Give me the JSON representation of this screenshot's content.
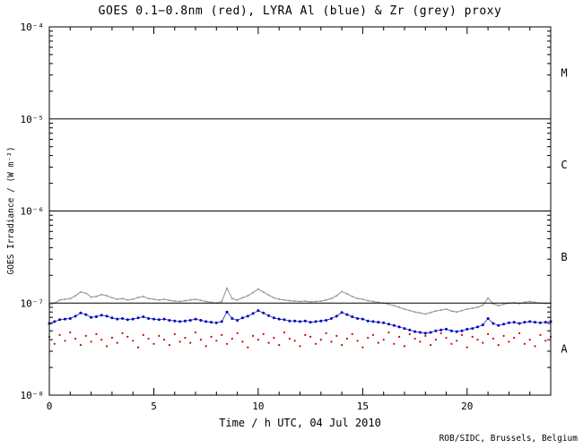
{
  "title": "GOES 0.1−0.8nm (red), LYRA Al (blue) & Zr (grey) proxy",
  "xlabel": "Time / h UTC, 04 Jul 2010",
  "ylabel": "GOES Irradiance / (W m⁻²)",
  "credit": "ROB/SIDC, Brussels, Belgium",
  "colors": {
    "goes_red": "#cc0000",
    "lyra_al_blue": "#0000bb",
    "lyra_zr_grey": "#999999",
    "axis": "#000000",
    "background": "#ffffff"
  },
  "chart_data": {
    "type": "scatter",
    "y_scale": "log",
    "xlim": [
      0,
      24
    ],
    "ylim": [
      1e-08,
      0.0001
    ],
    "grid": false,
    "boundary_lines": [
      1e-05,
      1e-06,
      1e-07
    ],
    "y_ticks": [
      {
        "label": "10⁻⁸",
        "value": 1e-08
      },
      {
        "label": "10⁻⁷",
        "value": 1e-07
      },
      {
        "label": "10⁻⁶",
        "value": 1e-06
      },
      {
        "label": "10⁻⁵",
        "value": 1e-05
      },
      {
        "label": "10⁻⁴",
        "value": 0.0001
      }
    ],
    "x_ticks": {
      "major_values": [
        0,
        5,
        10,
        15,
        20
      ],
      "major_labels": [
        "0",
        "5",
        "10",
        "15",
        "20"
      ],
      "minor_step": 1
    },
    "flare_class_labels": [
      {
        "label": "M",
        "value": 3.16e-05
      },
      {
        "label": "C",
        "value": 3.16e-06
      },
      {
        "label": "B",
        "value": 3.16e-07
      },
      {
        "label": "A",
        "value": 3.16e-08
      }
    ],
    "x": [
      0,
      0.25,
      0.5,
      0.75,
      1,
      1.25,
      1.5,
      1.75,
      2,
      2.25,
      2.5,
      2.75,
      3,
      3.25,
      3.5,
      3.75,
      4,
      4.25,
      4.5,
      4.75,
      5,
      5.25,
      5.5,
      5.75,
      6,
      6.25,
      6.5,
      6.75,
      7,
      7.25,
      7.5,
      7.75,
      8,
      8.25,
      8.5,
      8.75,
      9,
      9.25,
      9.5,
      9.75,
      10,
      10.25,
      10.5,
      10.75,
      11,
      11.25,
      11.5,
      11.75,
      12,
      12.25,
      12.5,
      12.75,
      13,
      13.25,
      13.5,
      13.75,
      14,
      14.25,
      14.5,
      14.75,
      15,
      15.25,
      15.5,
      15.75,
      16,
      16.25,
      16.5,
      16.75,
      17,
      17.25,
      17.5,
      17.75,
      18,
      18.25,
      18.5,
      18.75,
      19,
      19.25,
      19.5,
      19.75,
      20,
      20.25,
      20.5,
      20.75,
      21,
      21.25,
      21.5,
      21.75,
      22,
      22.25,
      22.5,
      22.75,
      23,
      23.25,
      23.5,
      23.75,
      24
    ],
    "series": [
      {
        "key": "goes-red",
        "name": "GOES 0.1−0.8nm (red)",
        "style": "scatter",
        "color_key": "goes_red",
        "values_e9": [
          43,
          36,
          45,
          39,
          48,
          41,
          35,
          44,
          38,
          46,
          40,
          34,
          42,
          37,
          47,
          43,
          39,
          33,
          45,
          41,
          36,
          44,
          40,
          35,
          46,
          38,
          42,
          37,
          48,
          40,
          34,
          43,
          39,
          45,
          36,
          41,
          47,
          38,
          33,
          44,
          40,
          46,
          37,
          42,
          35,
          48,
          41,
          39,
          34,
          45,
          43,
          36,
          40,
          47,
          38,
          44,
          35,
          41,
          46,
          39,
          33,
          42,
          45,
          37,
          40,
          48,
          36,
          43,
          34,
          46,
          41,
          38,
          44,
          35,
          40,
          47,
          42,
          36,
          39,
          45,
          33,
          43,
          40,
          37,
          46,
          41,
          35,
          44,
          38,
          42,
          47,
          36,
          40,
          34,
          45,
          39,
          43
        ]
      },
      {
        "key": "lyra-al",
        "name": "LYRA Al (blue) proxy",
        "style": "dots",
        "color_key": "lyra_al_blue",
        "values_e9": [
          60,
          63,
          66,
          67,
          68,
          72,
          78,
          75,
          70,
          71,
          74,
          72,
          69,
          67,
          68,
          66,
          67,
          69,
          71,
          68,
          67,
          66,
          67,
          65,
          64,
          63,
          64,
          65,
          67,
          65,
          63,
          62,
          61,
          63,
          80,
          68,
          65,
          69,
          72,
          77,
          83,
          78,
          73,
          69,
          67,
          66,
          64,
          64,
          63,
          64,
          62,
          63,
          64,
          65,
          68,
          72,
          79,
          75,
          71,
          68,
          67,
          64,
          63,
          62,
          61,
          59,
          57,
          55,
          53,
          51,
          49,
          48,
          47,
          48,
          50,
          51,
          52,
          50,
          49,
          50,
          52,
          53,
          55,
          58,
          68,
          60,
          57,
          59,
          61,
          62,
          60,
          62,
          63,
          62,
          61,
          62,
          63
        ]
      },
      {
        "key": "lyra-zr",
        "name": "LYRA Zr (grey) proxy",
        "style": "line",
        "color_key": "lyra_zr_grey",
        "values_e9": [
          95,
          100,
          108,
          110,
          112,
          120,
          132,
          128,
          116,
          118,
          124,
          120,
          114,
          110,
          112,
          108,
          110,
          115,
          118,
          112,
          110,
          108,
          110,
          107,
          105,
          104,
          106,
          108,
          110,
          107,
          104,
          102,
          100,
          104,
          145,
          112,
          108,
          114,
          120,
          130,
          142,
          132,
          122,
          114,
          110,
          108,
          106,
          105,
          104,
          105,
          103,
          104,
          105,
          108,
          112,
          120,
          133,
          126,
          118,
          112,
          110,
          106,
          104,
          102,
          100,
          97,
          94,
          90,
          86,
          83,
          80,
          78,
          76,
          79,
          82,
          84,
          86,
          82,
          80,
          83,
          86,
          88,
          90,
          95,
          113,
          98,
          94,
          97,
          100,
          101,
          99,
          102,
          104,
          102,
          100,
          99,
          100
        ]
      }
    ]
  }
}
